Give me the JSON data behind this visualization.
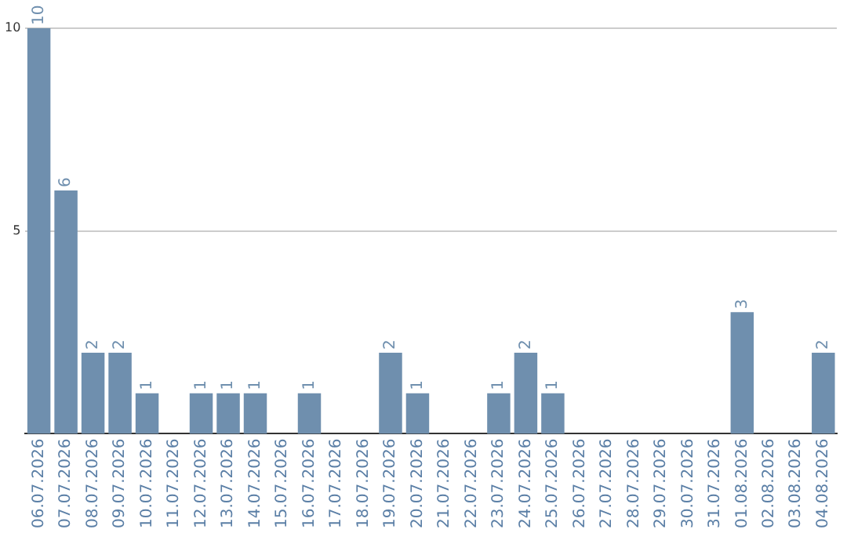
{
  "chart_data": {
    "type": "bar",
    "categories": [
      "06.07.2026",
      "07.07.2026",
      "08.07.2026",
      "09.07.2026",
      "10.07.2026",
      "11.07.2026",
      "12.07.2026",
      "13.07.2026",
      "14.07.2026",
      "15.07.2026",
      "16.07.2026",
      "17.07.2026",
      "18.07.2026",
      "19.07.2026",
      "20.07.2026",
      "21.07.2026",
      "22.07.2026",
      "23.07.2026",
      "24.07.2026",
      "25.07.2026",
      "26.07.2026",
      "27.07.2026",
      "28.07.2026",
      "29.07.2026",
      "30.07.2026",
      "31.07.2026",
      "01.08.2026",
      "02.08.2026",
      "03.08.2026",
      "04.08.2026"
    ],
    "values": [
      10,
      6,
      2,
      2,
      1,
      0,
      1,
      1,
      1,
      0,
      1,
      0,
      0,
      2,
      1,
      0,
      0,
      1,
      2,
      1,
      0,
      0,
      0,
      0,
      0,
      0,
      3,
      0,
      0,
      2
    ],
    "value_labels": [
      "10",
      "6",
      "2",
      "2",
      "1",
      null,
      "1",
      "1",
      "1",
      null,
      "1",
      null,
      null,
      "2",
      "1",
      null,
      null,
      "1",
      "2",
      "1",
      null,
      null,
      null,
      null,
      null,
      null,
      "3",
      null,
      null,
      "2"
    ],
    "color": "#6f8fae",
    "ylim": [
      0,
      10
    ],
    "yticks": [
      5,
      10
    ],
    "grid": "y",
    "legend": false
  }
}
